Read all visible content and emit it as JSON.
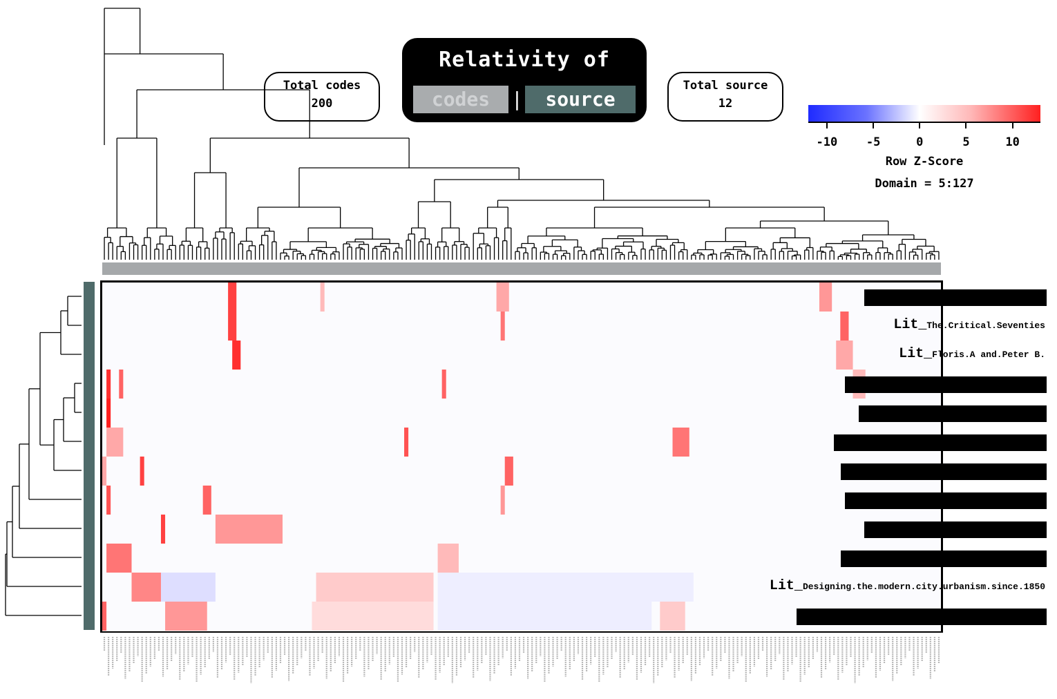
{
  "header": {
    "title": "Relativity of",
    "toggle_codes": "codes",
    "toggle_separator": "|",
    "toggle_source": "source",
    "total_codes_label": "Total codes",
    "total_codes_value": "200",
    "total_source_label": "Total source",
    "total_source_value": "12"
  },
  "colorbar": {
    "title": "Row Z-Score",
    "domain": "Domain = 5:127",
    "ticks": [
      "-10",
      "-5",
      "0",
      "5",
      "10"
    ],
    "tick_values": [
      -10,
      -5,
      0,
      5,
      10
    ],
    "range": [
      -12,
      13
    ],
    "colors": {
      "low": "#1f2bff",
      "mid": "#ffffff",
      "high": "#ff2020"
    }
  },
  "chart_data": {
    "type": "heatmap",
    "n_columns": 200,
    "n_rows": 12,
    "row_labels": [
      "",
      "Lit_The.Critical.Seventies",
      "Lit_Floris.A and.Peter B.",
      "",
      "",
      "",
      "",
      "",
      "",
      "",
      "Lit_Designing.the.modern.city.urbanism.since.1850",
      ""
    ],
    "row_label_parts": [
      {
        "prefix": "",
        "rest": ""
      },
      {
        "prefix": "Lit_",
        "rest": "The.Critical.Seventies"
      },
      {
        "prefix": "Lit_",
        "rest": "Floris.A and.Peter B."
      },
      {
        "prefix": "",
        "rest": ""
      },
      {
        "prefix": "",
        "rest": ""
      },
      {
        "prefix": "",
        "rest": ""
      },
      {
        "prefix": "",
        "rest": ""
      },
      {
        "prefix": "",
        "rest": ""
      },
      {
        "prefix": "",
        "rest": ""
      },
      {
        "prefix": "",
        "rest": ""
      },
      {
        "prefix": "Lit_",
        "rest": "Designing.the.modern.city.urbanism.since.1850"
      },
      {
        "prefix": "",
        "rest": ""
      }
    ],
    "redacted_rows": [
      0,
      3,
      4,
      5,
      6,
      7,
      8,
      9,
      11
    ],
    "hotspots": [
      {
        "row": 0,
        "col_start": 30,
        "col_end": 31,
        "z": 11
      },
      {
        "row": 0,
        "col_start": 52,
        "col_end": 52,
        "z": 4
      },
      {
        "row": 0,
        "col_start": 94,
        "col_end": 96,
        "z": 5
      },
      {
        "row": 0,
        "col_start": 171,
        "col_end": 173,
        "z": 6
      },
      {
        "row": 1,
        "col_start": 30,
        "col_end": 31,
        "z": 11
      },
      {
        "row": 1,
        "col_start": 95,
        "col_end": 95,
        "z": 8
      },
      {
        "row": 1,
        "col_start": 176,
        "col_end": 177,
        "z": 9
      },
      {
        "row": 2,
        "col_start": 31,
        "col_end": 32,
        "z": 12
      },
      {
        "row": 2,
        "col_start": 175,
        "col_end": 178,
        "z": 5
      },
      {
        "row": 3,
        "col_start": 1,
        "col_end": 1,
        "z": 12
      },
      {
        "row": 3,
        "col_start": 4,
        "col_end": 4,
        "z": 9
      },
      {
        "row": 3,
        "col_start": 81,
        "col_end": 81,
        "z": 9
      },
      {
        "row": 3,
        "col_start": 179,
        "col_end": 181,
        "z": 4
      },
      {
        "row": 4,
        "col_start": 1,
        "col_end": 1,
        "z": 13
      },
      {
        "row": 5,
        "col_start": 1,
        "col_end": 4,
        "z": 5
      },
      {
        "row": 5,
        "col_start": 72,
        "col_end": 72,
        "z": 10
      },
      {
        "row": 5,
        "col_start": 136,
        "col_end": 139,
        "z": 8
      },
      {
        "row": 6,
        "col_start": 0,
        "col_end": 0,
        "z": 5
      },
      {
        "row": 6,
        "col_start": 9,
        "col_end": 9,
        "z": 11
      },
      {
        "row": 6,
        "col_start": 96,
        "col_end": 97,
        "z": 9
      },
      {
        "row": 7,
        "col_start": 1,
        "col_end": 1,
        "z": 10
      },
      {
        "row": 7,
        "col_start": 24,
        "col_end": 25,
        "z": 9
      },
      {
        "row": 7,
        "col_start": 95,
        "col_end": 95,
        "z": 6
      },
      {
        "row": 8,
        "col_start": 14,
        "col_end": 14,
        "z": 11
      },
      {
        "row": 8,
        "col_start": 27,
        "col_end": 42,
        "z": 6
      },
      {
        "row": 9,
        "col_start": 1,
        "col_end": 6,
        "z": 8
      },
      {
        "row": 9,
        "col_start": 80,
        "col_end": 84,
        "z": 4
      },
      {
        "row": 10,
        "col_start": 7,
        "col_end": 13,
        "z": 7
      },
      {
        "row": 10,
        "col_start": 51,
        "col_end": 78,
        "z": 3
      },
      {
        "row": 11,
        "col_start": 0,
        "col_end": 0,
        "z": 9
      },
      {
        "row": 11,
        "col_start": 15,
        "col_end": 24,
        "z": 6
      },
      {
        "row": 11,
        "col_start": 50,
        "col_end": 78,
        "z": 2
      },
      {
        "row": 11,
        "col_start": 133,
        "col_end": 138,
        "z": 3
      }
    ],
    "cool_bands": [
      {
        "row": 10,
        "col_start": 14,
        "col_end": 26,
        "z": -2
      },
      {
        "row": 10,
        "col_start": 80,
        "col_end": 140,
        "z": -1
      },
      {
        "row": 11,
        "col_start": 80,
        "col_end": 130,
        "z": -1
      }
    ],
    "legend": "top-right",
    "grid": false
  }
}
